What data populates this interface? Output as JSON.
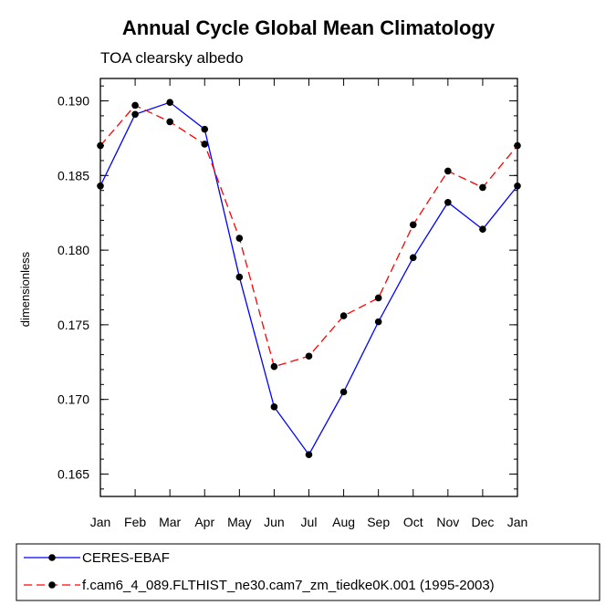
{
  "chart_data": {
    "type": "line",
    "title": "Annual Cycle Global Mean Climatology",
    "subtitle": "TOA clearsky albedo",
    "xlabel": "",
    "ylabel": "dimensionless",
    "categories": [
      "Jan",
      "Feb",
      "Mar",
      "Apr",
      "May",
      "Jun",
      "Jul",
      "Aug",
      "Sep",
      "Oct",
      "Nov",
      "Dec",
      "Jan"
    ],
    "ylim": [
      0.1635,
      0.1915
    ],
    "yticks": [
      0.165,
      0.17,
      0.175,
      0.18,
      0.185,
      0.19
    ],
    "ytick_labels": [
      "0.165",
      "0.170",
      "0.175",
      "0.180",
      "0.185",
      "0.190"
    ],
    "minor_ytick_step": 0.001,
    "series": [
      {
        "name": "CERES-EBAF",
        "color": "#0000ff",
        "dash": "solid",
        "marker": "circle",
        "values": [
          0.1843,
          0.1891,
          0.1899,
          0.1881,
          0.1782,
          0.1695,
          0.1663,
          0.1705,
          0.1752,
          0.1795,
          0.1832,
          0.1814,
          0.1843
        ]
      },
      {
        "name": "f.cam6_4_089.FLTHIST_ne30.cam7_zm_tiedke0K.001 (1995-2003)",
        "color": "#ff0000",
        "dash": "dashed",
        "marker": "circle",
        "values": [
          0.187,
          0.1897,
          0.1886,
          0.1871,
          0.1808,
          0.1722,
          0.1729,
          0.1756,
          0.1768,
          0.1817,
          0.1853,
          0.1842,
          0.187
        ]
      }
    ],
    "grid": false,
    "legend_position": "bottom"
  }
}
